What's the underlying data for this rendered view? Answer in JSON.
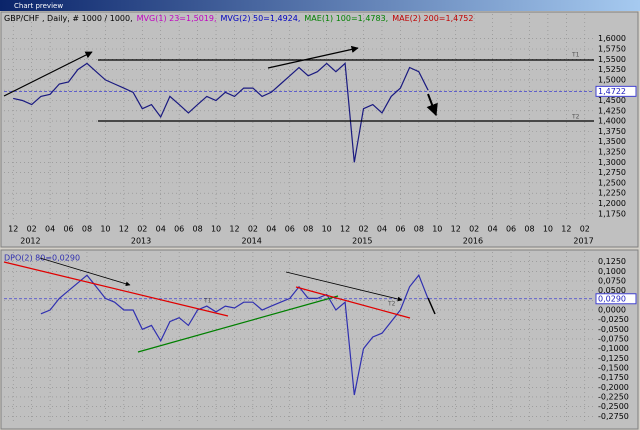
{
  "window_title": "Chart preview",
  "chart_data": [
    {
      "type": "line",
      "legend": [
        {
          "text": "GBP/CHF , Daily, # 1000 / 1000,",
          "color": "#000000"
        },
        {
          "text": "MVG(1) 23=1,5019,",
          "color": "#c000c0"
        },
        {
          "text": "MVG(2) 50=1,4924,",
          "color": "#0000c0"
        },
        {
          "text": "MAE(1) 100=1,4783,",
          "color": "#008000"
        },
        {
          "text": "MAE(2) 200=1,4752",
          "color": "#c00000"
        }
      ],
      "annotations": [
        "T1",
        "T2"
      ],
      "x": [
        "2011-12",
        "2012-01",
        "2012-02",
        "2012-03",
        "2012-04",
        "2012-05",
        "2012-06",
        "2012-07",
        "2012-08",
        "2012-09",
        "2012-10",
        "2012-11",
        "2012-12",
        "2013-01",
        "2013-02",
        "2013-03",
        "2013-04",
        "2013-05",
        "2013-06",
        "2013-07",
        "2013-08",
        "2013-09",
        "2013-10",
        "2013-11",
        "2013-12",
        "2014-01",
        "2014-02",
        "2014-03",
        "2014-04",
        "2014-05",
        "2014-06",
        "2014-07",
        "2014-08",
        "2014-09",
        "2014-10",
        "2014-11",
        "2014-12",
        "2015-01",
        "2015-02",
        "2015-03",
        "2015-04",
        "2015-05",
        "2015-06",
        "2015-07",
        "2015-08",
        "2015-09"
      ],
      "series": [
        {
          "name": "GBP/CHF",
          "color": "#1a1a80",
          "values": [
            1.455,
            1.45,
            1.44,
            1.46,
            1.465,
            1.49,
            1.495,
            1.525,
            1.54,
            1.52,
            1.5,
            1.49,
            1.48,
            1.47,
            1.43,
            1.44,
            1.41,
            1.46,
            1.44,
            1.42,
            1.44,
            1.46,
            1.45,
            1.47,
            1.46,
            1.48,
            1.48,
            1.46,
            1.47,
            1.49,
            1.51,
            1.53,
            1.51,
            1.52,
            1.54,
            1.52,
            1.54,
            1.3,
            1.43,
            1.44,
            1.42,
            1.46,
            1.48,
            1.53,
            1.52,
            1.475
          ]
        }
      ],
      "current": {
        "value": 1.4722,
        "label": "1,4722"
      },
      "xlim": [
        "2011-11",
        "2017-03"
      ],
      "xticks": [
        {
          "value": "2011-12",
          "label": "12"
        },
        {
          "value": "2012-02",
          "label": "02"
        },
        {
          "value": "2012-04",
          "label": "04"
        },
        {
          "value": "2012-06",
          "label": "06"
        },
        {
          "value": "2012-08",
          "label": "08"
        },
        {
          "value": "2012-10",
          "label": "10"
        },
        {
          "value": "2012-12",
          "label": "12"
        },
        {
          "value": "2013-02",
          "label": "02"
        },
        {
          "value": "2013-04",
          "label": "04"
        },
        {
          "value": "2013-06",
          "label": "06"
        },
        {
          "value": "2013-08",
          "label": "08"
        },
        {
          "value": "2013-10",
          "label": "10"
        },
        {
          "value": "2013-12",
          "label": "12"
        },
        {
          "value": "2014-02",
          "label": "02"
        },
        {
          "value": "2014-04",
          "label": "04"
        },
        {
          "value": "2014-06",
          "label": "06"
        },
        {
          "value": "2014-08",
          "label": "08"
        },
        {
          "value": "2014-10",
          "label": "10"
        },
        {
          "value": "2014-12",
          "label": "12"
        },
        {
          "value": "2015-02",
          "label": "02"
        },
        {
          "value": "2015-04",
          "label": "04"
        },
        {
          "value": "2015-06",
          "label": "06"
        },
        {
          "value": "2015-08",
          "label": "08"
        },
        {
          "value": "2015-10",
          "label": "10"
        },
        {
          "value": "2015-12",
          "label": "12"
        },
        {
          "value": "2016-02",
          "label": "02"
        },
        {
          "value": "2016-04",
          "label": "04"
        },
        {
          "value": "2016-06",
          "label": "06"
        },
        {
          "value": "2016-08",
          "label": "08"
        },
        {
          "value": "2016-10",
          "label": "10"
        },
        {
          "value": "2016-12",
          "label": "12"
        },
        {
          "value": "2017-02",
          "label": "02"
        }
      ],
      "year_ticks": [
        {
          "value": "2012-01",
          "label": "2012"
        },
        {
          "value": "2013-01",
          "label": "2013"
        },
        {
          "value": "2014-01",
          "label": "2014"
        },
        {
          "value": "2015-01",
          "label": "2015"
        },
        {
          "value": "2016-01",
          "label": "2016"
        },
        {
          "value": "2017-01",
          "label": "2017"
        }
      ],
      "ylim": [
        1.155,
        1.66
      ],
      "yticks": [
        {
          "value": 1.6,
          "label": "1,6000"
        },
        {
          "value": 1.575,
          "label": "1,5750"
        },
        {
          "value": 1.55,
          "label": "1,5500"
        },
        {
          "value": 1.525,
          "label": "1,5250"
        },
        {
          "value": 1.5,
          "label": "1,5000"
        },
        {
          "value": 1.475,
          "label": "1,4750"
        },
        {
          "value": 1.45,
          "label": "1,4500"
        },
        {
          "value": 1.425,
          "label": "1,4250"
        },
        {
          "value": 1.4,
          "label": "1,4000"
        },
        {
          "value": 1.375,
          "label": "1,3750"
        },
        {
          "value": 1.35,
          "label": "1,3500"
        },
        {
          "value": 1.325,
          "label": "1,3250"
        },
        {
          "value": 1.3,
          "label": "1,3000"
        },
        {
          "value": 1.275,
          "label": "1,2750"
        },
        {
          "value": 1.25,
          "label": "1,2500"
        },
        {
          "value": 1.225,
          "label": "1,2250"
        },
        {
          "value": 1.2,
          "label": "1,2000"
        },
        {
          "value": 1.175,
          "label": "1,1750"
        }
      ],
      "grid": true
    },
    {
      "type": "line",
      "annotations": [
        "T1",
        "T2"
      ],
      "x": [
        "2012-03",
        "2012-04",
        "2012-05",
        "2012-06",
        "2012-07",
        "2012-08",
        "2012-09",
        "2012-10",
        "2012-11",
        "2012-12",
        "2013-01",
        "2013-02",
        "2013-03",
        "2013-04",
        "2013-05",
        "2013-06",
        "2013-07",
        "2013-08",
        "2013-09",
        "2013-10",
        "2013-11",
        "2013-12",
        "2014-01",
        "2014-02",
        "2014-03",
        "2014-04",
        "2014-05",
        "2014-06",
        "2014-07",
        "2014-08",
        "2014-09",
        "2014-10",
        "2014-11",
        "2014-12",
        "2015-01",
        "2015-02",
        "2015-03",
        "2015-04",
        "2015-05",
        "2015-06",
        "2015-07",
        "2015-08",
        "2015-09"
      ],
      "series": [
        {
          "name": "DPO(2) 80=0,0290",
          "color": "#3030b0",
          "values": [
            -0.01,
            0,
            0.03,
            0.05,
            0.07,
            0.09,
            0.06,
            0.03,
            0.02,
            0,
            0,
            -0.05,
            -0.04,
            -0.08,
            -0.03,
            -0.02,
            -0.04,
            0,
            0.01,
            -0.005,
            0.01,
            0.005,
            0.02,
            0.02,
            0,
            0.01,
            0.02,
            0.03,
            0.06,
            0.03,
            0.03,
            0.04,
            0,
            0.02,
            -0.22,
            -0.1,
            -0.07,
            -0.06,
            -0.03,
            0,
            0.06,
            0.09,
            0.029
          ]
        }
      ],
      "current": {
        "value": 0.029,
        "label": "0,0290"
      },
      "xlim": [
        "2011-11",
        "2017-03"
      ],
      "ylim": [
        -0.295,
        0.15
      ],
      "yticks": [
        {
          "value": 0.125,
          "label": "0,1250"
        },
        {
          "value": 0.1,
          "label": "0,1000"
        },
        {
          "value": 0.075,
          "label": "0,0750"
        },
        {
          "value": 0.05,
          "label": "0,0500"
        },
        {
          "value": 0.025,
          "label": "0,0250"
        },
        {
          "value": 0,
          "label": "0,0000"
        },
        {
          "value": -0.025,
          "label": "-0,0250"
        },
        {
          "value": -0.05,
          "label": "-0,0500"
        },
        {
          "value": -0.075,
          "label": "-0,0750"
        },
        {
          "value": -0.1,
          "label": "-0,1000"
        },
        {
          "value": -0.125,
          "label": "-0,1250"
        },
        {
          "value": -0.15,
          "label": "-0,1500"
        },
        {
          "value": -0.175,
          "label": "-0,1750"
        },
        {
          "value": -0.2,
          "label": "-0,2000"
        },
        {
          "value": -0.225,
          "label": "-0,2250"
        },
        {
          "value": -0.25,
          "label": "-0,2500"
        },
        {
          "value": -0.275,
          "label": "-0,2750"
        }
      ],
      "grid": true
    }
  ]
}
